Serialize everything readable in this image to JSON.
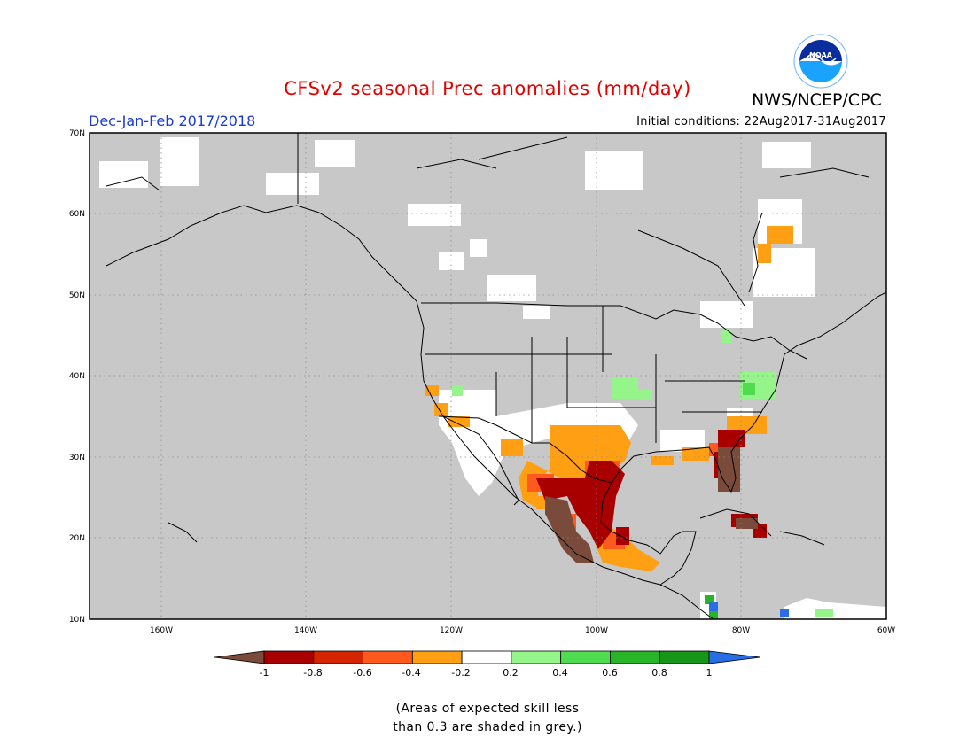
{
  "header": {
    "title": "CFSv2 seasonal Prec anomalies (mm/day)",
    "agency": "NWS/NCEP/CPC",
    "season": "Dec-Jan-Feb 2017/2018",
    "initial_conditions": "Initial conditions: 22Aug2017-31Aug2017"
  },
  "map": {
    "lat_labels": [
      "70N",
      "60N",
      "50N",
      "40N",
      "30N",
      "20N",
      "10N"
    ],
    "lon_labels": [
      "160W",
      "140W",
      "120W",
      "100W",
      "80W",
      "60W"
    ],
    "lon_range": [
      -170,
      -60
    ],
    "lat_range": [
      10,
      70
    ],
    "grey_meaning": "skill < 0.3"
  },
  "colorbar": {
    "tick_labels": [
      "-1",
      "-0.8",
      "-0.6",
      "-0.4",
      "-0.2",
      "0.2",
      "0.4",
      "0.6",
      "0.8",
      "1"
    ],
    "colors": [
      "#7a4b3a",
      "#a80000",
      "#d42400",
      "#ff5a1e",
      "#ffa014",
      "#ffffff",
      "#96f58a",
      "#50dc50",
      "#28b428",
      "#169616",
      "#2a6ee6"
    ]
  },
  "footnote": {
    "line1": "(Areas of expected skill less",
    "line2": "than 0.3 are shaded in grey.)"
  },
  "colors": {
    "grey": "#c8c8c8",
    "title": "#e00000",
    "season": "#1a3ad6"
  }
}
